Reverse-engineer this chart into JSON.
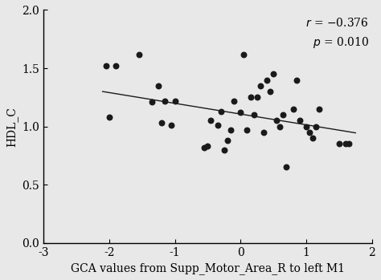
{
  "scatter_x": [
    -2.05,
    -2.0,
    -1.9,
    -1.55,
    -1.35,
    -1.25,
    -1.2,
    -1.15,
    -1.05,
    -1.0,
    -0.55,
    -0.5,
    -0.45,
    -0.35,
    -0.3,
    -0.25,
    -0.2,
    -0.15,
    -0.1,
    0.0,
    0.05,
    0.1,
    0.15,
    0.2,
    0.25,
    0.3,
    0.35,
    0.4,
    0.45,
    0.5,
    0.55,
    0.6,
    0.65,
    0.7,
    0.8,
    0.85,
    0.9,
    1.0,
    1.05,
    1.1,
    1.15,
    1.2,
    1.5,
    1.6,
    1.65
  ],
  "scatter_y": [
    1.52,
    1.08,
    1.52,
    1.62,
    1.21,
    1.35,
    1.03,
    1.22,
    1.01,
    1.22,
    0.82,
    0.83,
    1.05,
    1.01,
    1.13,
    0.8,
    0.88,
    0.97,
    1.22,
    1.12,
    1.62,
    0.97,
    1.25,
    1.1,
    1.25,
    1.35,
    0.95,
    1.4,
    1.3,
    1.45,
    1.05,
    1.0,
    1.1,
    0.65,
    1.15,
    1.4,
    1.05,
    1.0,
    0.95,
    0.9,
    1.0,
    1.15,
    0.85,
    0.85,
    0.85
  ],
  "line_x": [
    -2.1,
    1.75
  ],
  "line_y": [
    1.3,
    0.945
  ],
  "xlabel": "GCA values from Supp_Motor_Area_R to left M1",
  "ylabel": "HDL_C",
  "xlim": [
    -3,
    2
  ],
  "ylim": [
    0.0,
    2.0
  ],
  "xticks": [
    -3,
    -2,
    -1,
    0,
    1,
    2
  ],
  "yticks": [
    0.0,
    0.5,
    1.0,
    1.5,
    2.0
  ],
  "dot_color": "#1a1a1a",
  "line_color": "#1a1a1a",
  "dot_size": 22,
  "fig_bg_color": "#e8e8e8",
  "axes_bg_color": "#e8e8e8",
  "figsize": [
    4.74,
    3.49
  ],
  "dpi": 100
}
